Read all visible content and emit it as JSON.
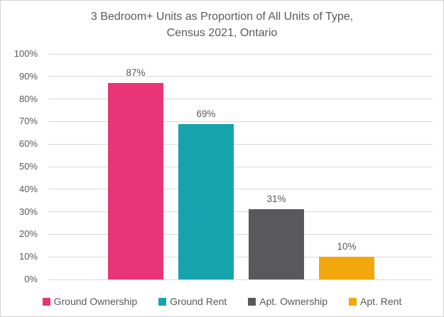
{
  "chart": {
    "title": "3 Bedroom+ Units as Proportion of All Units of Type,\nCensus 2021, Ontario"
  },
  "chart_data": {
    "type": "bar",
    "title": "3 Bedroom+ Units as Proportion of All Units of Type, Census 2021, Ontario",
    "categories": [
      "Ground Ownership",
      "Ground Rent",
      "Apt. Ownership",
      "Apt. Rent"
    ],
    "values": [
      87,
      69,
      31,
      10
    ],
    "value_labels": [
      "87%",
      "69%",
      "31%",
      "10%"
    ],
    "bar_colors": [
      "#E93577",
      "#16A4AC",
      "#59595B",
      "#F2A70D"
    ],
    "yticks": [
      "100%",
      "90%",
      "80%",
      "70%",
      "60%",
      "50%",
      "40%",
      "30%",
      "20%",
      "10%",
      "0%"
    ],
    "ylim": [
      0,
      100
    ],
    "xlabel": "",
    "ylabel": "",
    "grid": true,
    "legend_position": "bottom"
  },
  "colors": {
    "gridline": "#D9D9D9",
    "text": "#595959",
    "background": "#FFFFFF",
    "frame_border": "#D2D2D2"
  }
}
